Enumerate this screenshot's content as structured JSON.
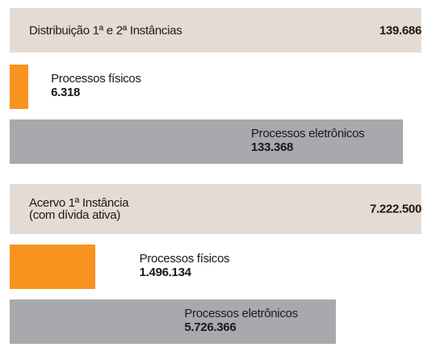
{
  "chart_data": [
    {
      "type": "bar",
      "title": "Distribuição 1ª e 2ª Instâncias",
      "total": {
        "value": 139686,
        "label": "139.686"
      },
      "total_color": "#e4dcd4",
      "categories": [
        "Processos físicos",
        "Processos eletrônicos"
      ],
      "values": [
        6318,
        133368
      ],
      "value_labels": [
        "6.318",
        "133.368"
      ],
      "colors": [
        "#f7931e",
        "#a7a9ac"
      ]
    },
    {
      "type": "bar",
      "title": "Acervo 1ª Instância\n(com dívida ativa)",
      "total": {
        "value": 7222500,
        "label": "7.222.500"
      },
      "total_color": "#e4dcd4",
      "categories": [
        "Processos físicos",
        "Processos eletrônicos"
      ],
      "values": [
        1496134,
        5726366
      ],
      "value_labels": [
        "1.496.134",
        "5.726.366"
      ],
      "colors": [
        "#f7931e",
        "#a7a9ac"
      ]
    }
  ]
}
